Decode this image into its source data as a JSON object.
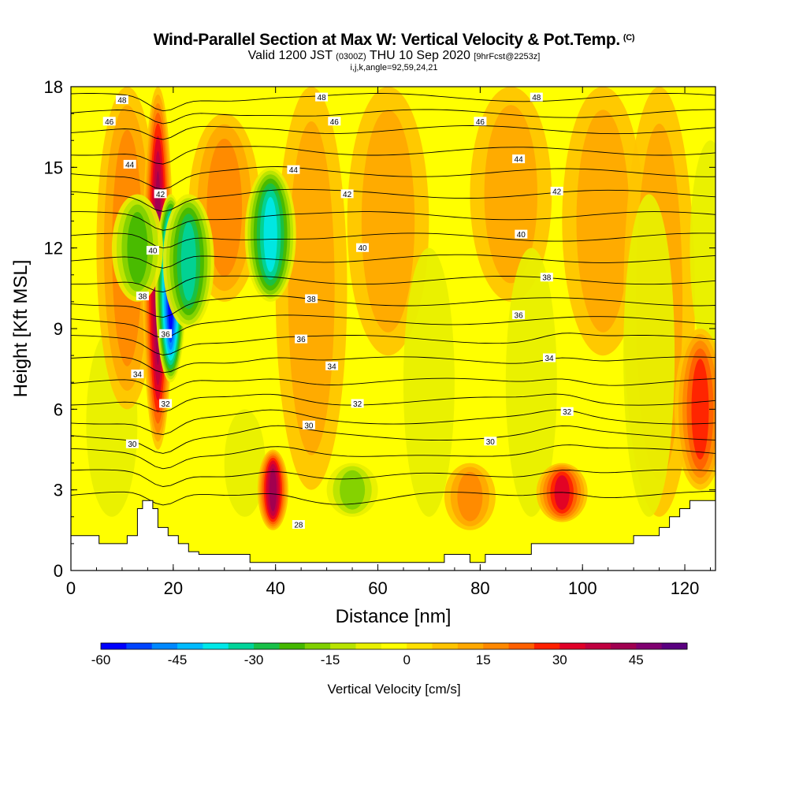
{
  "title": {
    "main": "Wind-Parallel Section at Max W: Vertical Velocity & Pot.Temp.",
    "copyright": "(C)",
    "valid_prefix": "Valid 1200 JST",
    "valid_small1": "(0300Z)",
    "valid_mid": "THU 10 Sep 2020",
    "valid_small2": "[9hrFcst@2253z]",
    "params": "i,j,k,angle=92,59,24,21"
  },
  "chart_data": {
    "type": "heatmap",
    "xlabel": "Distance [nm]",
    "ylabel": "Height [Kft MSL]",
    "xlim": [
      0,
      126
    ],
    "ylim": [
      0,
      18
    ],
    "x_ticks": [
      0,
      20,
      40,
      60,
      80,
      100,
      120
    ],
    "y_ticks": [
      0,
      3,
      6,
      9,
      12,
      15,
      18
    ],
    "colorbar": {
      "title": "Vertical Velocity [cm/s]",
      "min": -60,
      "max": 55,
      "step": 5,
      "tick_labels": [
        "-60",
        "-45",
        "-30",
        "-15",
        "0",
        "15",
        "30",
        "45"
      ],
      "tick_values": [
        -60,
        -45,
        -30,
        -15,
        0,
        15,
        30,
        45
      ],
      "colors": [
        "#0000ff",
        "#0044ff",
        "#0088ff",
        "#00bbff",
        "#00e8e8",
        "#00d49a",
        "#18c048",
        "#44b800",
        "#80d000",
        "#b8e400",
        "#e8f000",
        "#ffff00",
        "#ffe000",
        "#ffc400",
        "#ffa800",
        "#ff8800",
        "#ff6000",
        "#ff2000",
        "#e00028",
        "#c00040",
        "#a00050",
        "#800070",
        "#5a0080"
      ]
    },
    "velocity_features": [
      {
        "type": "updraft",
        "x": 17,
        "z_bottom": 4.5,
        "z_top": 18,
        "peak": 40
      },
      {
        "type": "downdraft",
        "x": 19.5,
        "z_bottom": 7,
        "z_top": 14,
        "peak": -55
      },
      {
        "type": "downdraft",
        "x": 13,
        "z_bottom": 10,
        "z_top": 14,
        "peak": -20
      },
      {
        "type": "downdraft",
        "x": 23,
        "z_bottom": 9,
        "z_top": 14,
        "peak": -30
      },
      {
        "type": "downdraft",
        "x": 39,
        "z_bottom": 10,
        "z_top": 15,
        "peak": -35
      },
      {
        "type": "updraft",
        "x": 39.5,
        "z_bottom": 1.5,
        "z_top": 4.5,
        "peak": 40
      },
      {
        "type": "updraft",
        "x": 96,
        "z_bottom": 1.8,
        "z_top": 4,
        "peak": 32
      },
      {
        "type": "updraft",
        "x": 123,
        "z_bottom": 3,
        "z_top": 9,
        "peak": 25
      },
      {
        "type": "downdraft",
        "x": 55,
        "z_bottom": 2,
        "z_top": 4,
        "peak": -15
      },
      {
        "type": "updraft",
        "x": 78,
        "z_bottom": 1.5,
        "z_top": 4,
        "peak": 18
      }
    ],
    "potential_temperature_contours": {
      "levels": [
        28,
        30,
        32,
        34,
        36,
        38,
        40,
        42,
        44,
        46,
        48
      ],
      "labels": [
        {
          "text": "48",
          "x": 10,
          "z": 17.5
        },
        {
          "text": "48",
          "x": 49,
          "z": 17.6
        },
        {
          "text": "48",
          "x": 91,
          "z": 17.6
        },
        {
          "text": "46",
          "x": 7.5,
          "z": 16.7
        },
        {
          "text": "46",
          "x": 51.5,
          "z": 16.7
        },
        {
          "text": "46",
          "x": 80,
          "z": 16.7
        },
        {
          "text": "44",
          "x": 11.5,
          "z": 15.1
        },
        {
          "text": "44",
          "x": 43.5,
          "z": 14.9
        },
        {
          "text": "44",
          "x": 87.5,
          "z": 15.3
        },
        {
          "text": "42",
          "x": 17.5,
          "z": 14.0
        },
        {
          "text": "42",
          "x": 54,
          "z": 14.0
        },
        {
          "text": "42",
          "x": 95,
          "z": 14.1
        },
        {
          "text": "40",
          "x": 16,
          "z": 11.9
        },
        {
          "text": "40",
          "x": 57,
          "z": 12.0
        },
        {
          "text": "40",
          "x": 88,
          "z": 12.5
        },
        {
          "text": "38",
          "x": 14,
          "z": 10.2
        },
        {
          "text": "38",
          "x": 47,
          "z": 10.1
        },
        {
          "text": "38",
          "x": 93,
          "z": 10.9
        },
        {
          "text": "36",
          "x": 18.5,
          "z": 8.8
        },
        {
          "text": "36",
          "x": 45,
          "z": 8.6
        },
        {
          "text": "36",
          "x": 87.5,
          "z": 9.5
        },
        {
          "text": "34",
          "x": 13,
          "z": 7.3
        },
        {
          "text": "34",
          "x": 51,
          "z": 7.6
        },
        {
          "text": "34",
          "x": 93.5,
          "z": 7.9
        },
        {
          "text": "32",
          "x": 18.5,
          "z": 6.2
        },
        {
          "text": "32",
          "x": 56,
          "z": 6.2
        },
        {
          "text": "32",
          "x": 97,
          "z": 5.9
        },
        {
          "text": "30",
          "x": 12,
          "z": 4.7
        },
        {
          "text": "30",
          "x": 46.5,
          "z": 5.4
        },
        {
          "text": "30",
          "x": 82,
          "z": 4.8
        },
        {
          "text": "28",
          "x": 44.5,
          "z": 1.7
        }
      ]
    },
    "terrain_profile": [
      [
        0,
        1.3
      ],
      [
        5.5,
        1.3
      ],
      [
        5.5,
        1.0
      ],
      [
        11,
        1.0
      ],
      [
        11,
        1.3
      ],
      [
        13,
        1.3
      ],
      [
        13,
        2.3
      ],
      [
        14,
        2.3
      ],
      [
        14,
        2.6
      ],
      [
        16,
        2.6
      ],
      [
        16,
        2.3
      ],
      [
        17,
        2.3
      ],
      [
        17,
        1.6
      ],
      [
        19,
        1.6
      ],
      [
        19,
        1.3
      ],
      [
        21,
        1.3
      ],
      [
        21,
        1.0
      ],
      [
        23,
        1.0
      ],
      [
        23,
        0.7
      ],
      [
        25,
        0.7
      ],
      [
        25,
        0.6
      ],
      [
        28,
        0.6
      ],
      [
        28,
        0.6
      ],
      [
        35,
        0.6
      ],
      [
        35,
        0.3
      ],
      [
        48,
        0.3
      ],
      [
        48,
        0.3
      ],
      [
        56,
        0.3
      ],
      [
        56,
        0.3
      ],
      [
        60,
        0.3
      ],
      [
        60,
        0.3
      ],
      [
        70,
        0.3
      ],
      [
        70,
        0.3
      ],
      [
        73,
        0.3
      ],
      [
        73,
        0.6
      ],
      [
        78,
        0.6
      ],
      [
        78,
        0.3
      ],
      [
        81,
        0.3
      ],
      [
        81,
        0.6
      ],
      [
        90,
        0.6
      ],
      [
        90,
        1.0
      ],
      [
        100,
        1.0
      ],
      [
        100,
        1.0
      ],
      [
        110,
        1.0
      ],
      [
        110,
        1.3
      ],
      [
        115,
        1.3
      ],
      [
        115,
        1.6
      ],
      [
        117,
        1.6
      ],
      [
        117,
        2.0
      ],
      [
        119,
        2.0
      ],
      [
        119,
        2.3
      ],
      [
        121,
        2.3
      ],
      [
        121,
        2.6
      ],
      [
        126,
        2.6
      ]
    ]
  }
}
